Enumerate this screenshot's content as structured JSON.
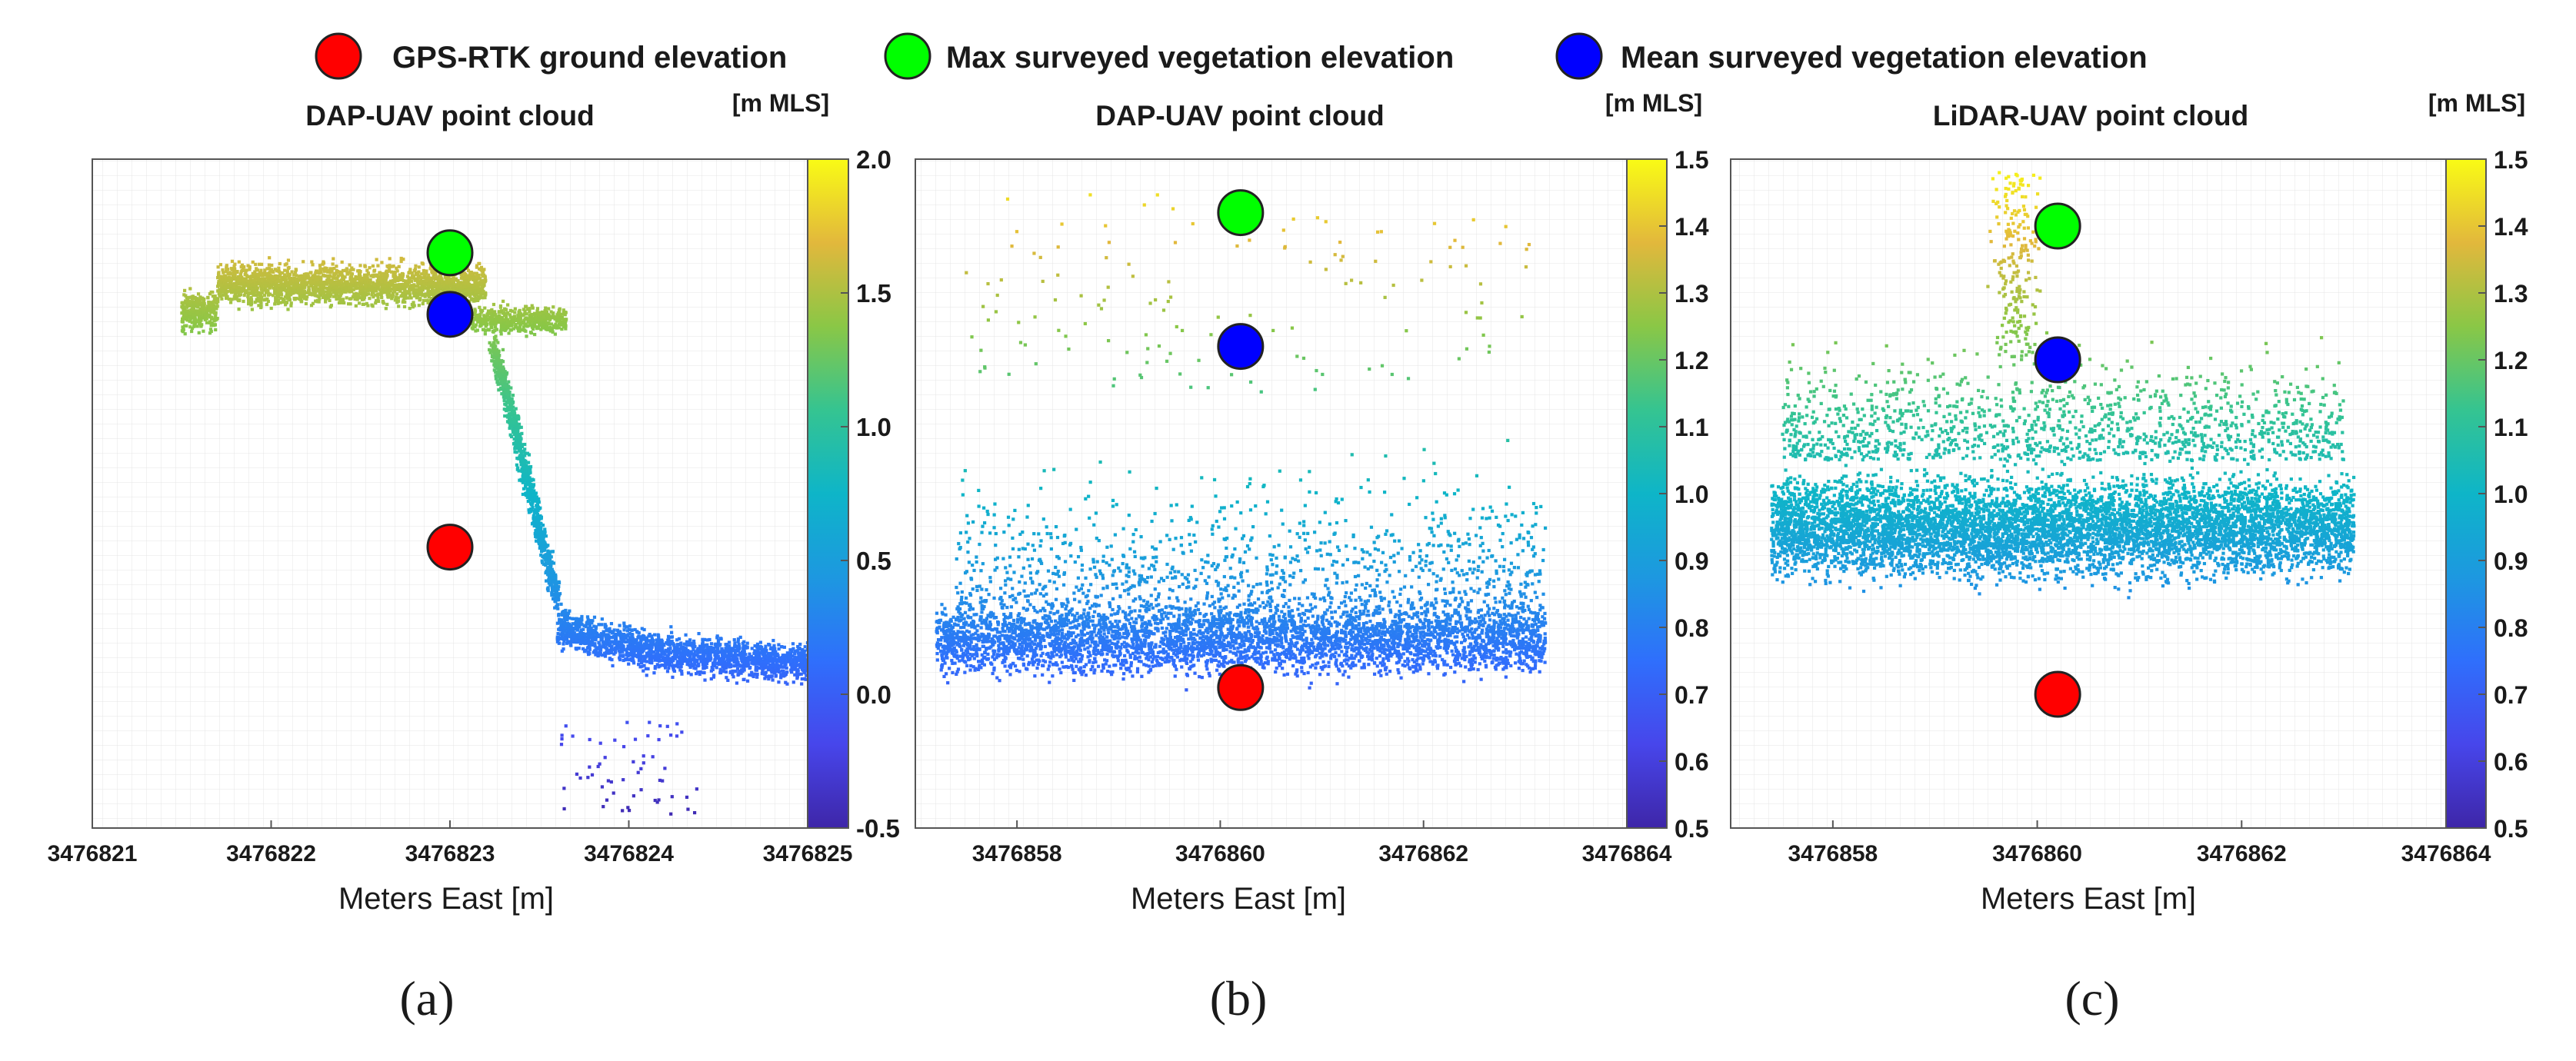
{
  "legend": {
    "items": [
      {
        "label": "GPS-RTK ground elevation",
        "color": "#ff0000"
      },
      {
        "label": "Max surveyed vegetation elevation",
        "color": "#00ff00"
      },
      {
        "label": "Mean surveyed vegetation elevation",
        "color": "#0000ff"
      }
    ]
  },
  "chart_data": [
    {
      "type": "scatter",
      "panel": "(a)",
      "title": "DAP-UAV point cloud",
      "xlabel": "Meters East [m]",
      "xlim": [
        3476821,
        3476825
      ],
      "xticks": [
        "3476821",
        "3476822",
        "3476823",
        "3476824",
        "3476825"
      ],
      "ylim": [
        -0.5,
        2.0
      ],
      "colorbar": {
        "unit": "[m MLS]",
        "range": [
          -0.5,
          2.0
        ],
        "ticks": [
          "-0.5",
          "0.0",
          "0.5",
          "1.0",
          "1.5",
          "2.0"
        ],
        "colormap": "parula"
      },
      "markers": {
        "x": 3476823.0,
        "ground": 0.55,
        "max": 1.65,
        "mean": 1.42
      },
      "point_cloud": "elevation profile: plateau ~1.35–1.7 m from 3476821.5 to 3476823.2, steep drop near 3476823.3–3476823.6, then low ground ~0.0–0.2 m to 3476825"
    },
    {
      "type": "scatter",
      "panel": "(b)",
      "title": "DAP-UAV point cloud",
      "xlabel": "Meters East [m]",
      "xlim": [
        3476857,
        3476864
      ],
      "xticks": [
        "3476858",
        "3476860",
        "3476862",
        "3476864"
      ],
      "ylim": [
        0.5,
        1.5
      ],
      "colorbar": {
        "unit": "[m MLS]",
        "range": [
          0.5,
          1.5
        ],
        "ticks": [
          "0.5",
          "0.6",
          "0.7",
          "0.8",
          "0.9",
          "1.0",
          "1.1",
          "1.2",
          "1.3",
          "1.4",
          "1.5"
        ],
        "colormap": "parula"
      },
      "markers": {
        "x": 3476860.2,
        "ground": 0.71,
        "max": 1.42,
        "mean": 1.22
      },
      "point_cloud": "dense low points ~0.65–0.9 m, sparse scattered points up to ~1.45 m, x from 3476857.2 to 3476863.2"
    },
    {
      "type": "scatter",
      "panel": "(c)",
      "title": "LiDAR-UAV point cloud",
      "xlabel": "Meters East [m]",
      "xlim": [
        3476857,
        3476864
      ],
      "xticks": [
        "3476858",
        "3476860",
        "3476862",
        "3476864"
      ],
      "ylim": [
        0.5,
        1.5
      ],
      "colorbar": {
        "unit": "[m MLS]",
        "range": [
          0.5,
          1.5
        ],
        "ticks": [
          "0.5",
          "0.6",
          "0.7",
          "0.8",
          "0.9",
          "1.0",
          "1.1",
          "1.2",
          "1.3",
          "1.4",
          "1.5"
        ],
        "colormap": "parula"
      },
      "markers": {
        "x": 3476860.2,
        "ground": 0.7,
        "max": 1.4,
        "mean": 1.2
      },
      "point_cloud": "dense band ~0.75–1.15 m centred near 0.95 m, sparser points up to ~1.45 m, x from 3476857.4 to 3476863.1"
    }
  ]
}
